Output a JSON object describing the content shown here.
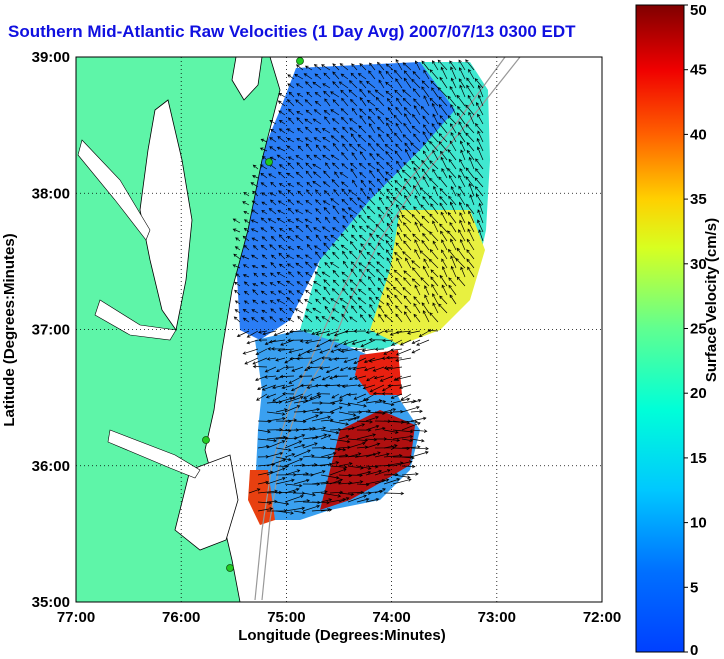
{
  "title": "Southern Mid-Atlantic Raw Velocities (1 Day Avg) 2007/07/13 0300 EDT",
  "map": {
    "xlabel": "Longitude (Degrees:Minutes)",
    "ylabel": "Latitude (Degrees:Minutes)",
    "x_ticks": [
      "77:00",
      "76:00",
      "75:00",
      "74:00",
      "73:00",
      "72:00"
    ],
    "y_ticks": [
      "35:00",
      "36:00",
      "37:00",
      "38:00",
      "39:00"
    ],
    "lon_range": [
      -77,
      -72
    ],
    "lat_range": [
      35,
      39
    ],
    "grid": "dotted",
    "colors": {
      "land": "#5ef5a8",
      "water": "#ffffff",
      "coast": "#000000",
      "vector": "#000000",
      "station": "#22cc22"
    }
  },
  "colorbar": {
    "label": "Surface Velocity (cm/s)",
    "ticks": [
      "0",
      "5",
      "10",
      "15",
      "20",
      "25",
      "30",
      "35",
      "40",
      "45",
      "50"
    ],
    "range": [
      0,
      50
    ],
    "colormap": "jet"
  }
}
